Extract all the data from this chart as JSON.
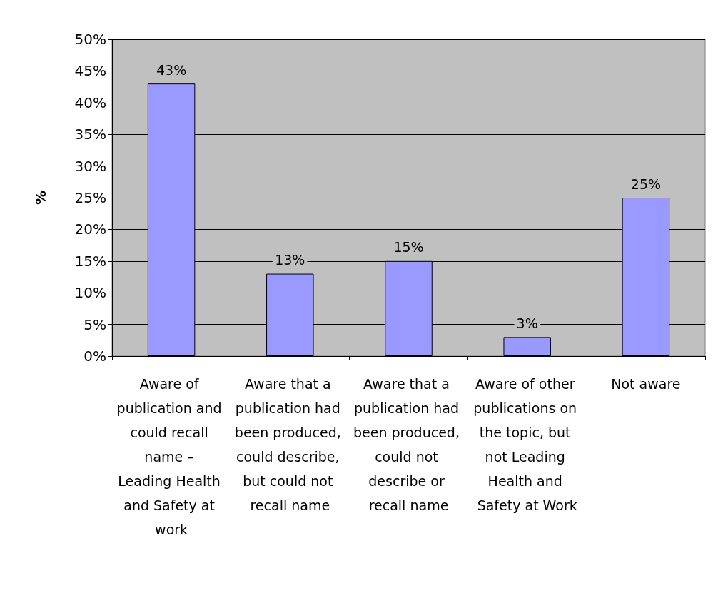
{
  "chart_data": {
    "type": "bar",
    "ylabel": "%",
    "categories": [
      "Aware of publication and could recall name – Leading Health and Safety at work",
      "Aware that a publication had been produced, could describe, but could not recall name",
      "Aware that a publication had been produced, could not describe or recall name",
      "Aware of other publications on the topic, but not Leading Health and Safety at Work",
      "Not aware"
    ],
    "values": [
      43,
      13,
      15,
      3,
      25
    ],
    "value_labels": [
      "43%",
      "13%",
      "15%",
      "3%",
      "25%"
    ],
    "color": "#9999ff",
    "ylim": [
      0,
      50
    ],
    "yticks": [
      {
        "value": 0,
        "label": "0%"
      },
      {
        "value": 5,
        "label": "5%"
      },
      {
        "value": 10,
        "label": "10%"
      },
      {
        "value": 15,
        "label": "15%"
      },
      {
        "value": 20,
        "label": "20%"
      },
      {
        "value": 25,
        "label": "25%"
      },
      {
        "value": 30,
        "label": "30%"
      },
      {
        "value": 35,
        "label": "35%"
      },
      {
        "value": 40,
        "label": "40%"
      },
      {
        "value": 45,
        "label": "45%"
      },
      {
        "value": 50,
        "label": "50%"
      }
    ],
    "grid": "y"
  }
}
